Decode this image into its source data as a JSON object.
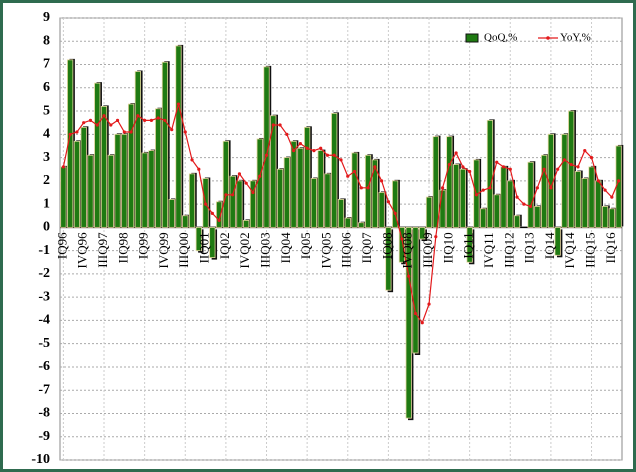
{
  "chart_data": {
    "type": "bar",
    "categories": [
      "IQ96",
      null,
      null,
      "IVQ96",
      null,
      null,
      "IIIQ97",
      null,
      null,
      "IIQ98",
      null,
      null,
      "IQ99",
      null,
      null,
      "IVQ99",
      null,
      null,
      "IIIQ00",
      null,
      null,
      "IIQ01",
      null,
      null,
      "IQ02",
      null,
      null,
      "IVQ02",
      null,
      null,
      "IIIQ03",
      null,
      null,
      "IIQ04",
      null,
      null,
      "IQ05",
      null,
      null,
      "IVQ05",
      null,
      null,
      "IIIQ06",
      null,
      null,
      "IIQ07",
      null,
      null,
      "IQ08",
      null,
      null,
      "IVQ08",
      null,
      null,
      "IIIQ09",
      null,
      null,
      "IIQ10",
      null,
      null,
      "IQ11",
      null,
      null,
      "IVQ11",
      null,
      null,
      "IIIQ12",
      null,
      null,
      "IIQ13",
      null,
      null,
      "IQ14",
      null,
      null,
      "IVQ14",
      null,
      null,
      "IIIQ15",
      null,
      null,
      "IIQ16",
      null
    ],
    "series": [
      {
        "name": "QoQ,%",
        "type": "bar",
        "color": "#1f7a12",
        "values": [
          2.6,
          7.2,
          3.7,
          4.3,
          3.1,
          6.2,
          5.2,
          3.1,
          4.0,
          4.0,
          5.3,
          6.7,
          3.2,
          3.3,
          5.1,
          7.1,
          1.2,
          7.8,
          0.5,
          2.3,
          -1.0,
          2.1,
          -1.3,
          1.1,
          3.7,
          2.2,
          2.0,
          0.3,
          2.0,
          3.8,
          6.9,
          4.8,
          2.5,
          3.0,
          3.7,
          3.4,
          4.3,
          2.1,
          3.3,
          2.3,
          4.9,
          1.2,
          0.4,
          3.2,
          0.2,
          3.1,
          2.9,
          1.5,
          -2.7,
          2.0,
          -1.5,
          -8.2,
          -5.4,
          -0.5,
          1.3,
          3.9,
          1.6,
          3.9,
          2.7,
          2.5,
          -1.5,
          2.9,
          0.8,
          4.6,
          1.4,
          2.6,
          2.0,
          0.5,
          0.0,
          2.8,
          0.9,
          3.1,
          4.0,
          -1.2,
          4.0,
          5.0,
          2.4,
          2.1,
          2.6,
          2.0,
          0.9,
          0.8,
          3.5
        ]
      },
      {
        "name": "YoY,%",
        "type": "line",
        "color": "#e31a1c",
        "values": [
          2.6,
          4.0,
          4.1,
          4.5,
          4.6,
          4.4,
          4.8,
          4.4,
          4.6,
          4.1,
          4.1,
          4.8,
          4.6,
          4.6,
          4.7,
          4.6,
          4.2,
          5.3,
          4.1,
          2.9,
          2.5,
          1.0,
          0.6,
          0.3,
          1.4,
          1.4,
          2.3,
          1.9,
          1.5,
          2.2,
          3.1,
          4.4,
          4.4,
          4.0,
          3.3,
          3.6,
          3.4,
          3.3,
          3.4,
          3.1,
          3.1,
          2.9,
          2.2,
          2.4,
          1.7,
          1.7,
          2.6,
          2.0,
          1.1,
          0.6,
          -0.5,
          -2.1,
          -3.7,
          -4.1,
          -3.3,
          -0.4,
          1.7,
          2.7,
          3.2,
          2.6,
          2.4,
          1.4,
          1.6,
          1.7,
          2.8,
          2.6,
          2.5,
          1.3,
          1.0,
          0.9,
          1.7,
          2.5,
          1.7,
          2.5,
          2.9,
          2.7,
          2.6,
          3.3,
          3.0,
          2.0,
          1.6,
          1.3,
          2.0
        ]
      }
    ],
    "ylim": [
      -10,
      9
    ],
    "yticks": [
      -10,
      -9,
      -8,
      -7,
      -6,
      -5,
      -4,
      -3,
      -2,
      -1,
      0,
      1,
      2,
      3,
      4,
      5,
      6,
      7,
      8,
      9
    ],
    "grid": true,
    "legend": "upper right"
  }
}
